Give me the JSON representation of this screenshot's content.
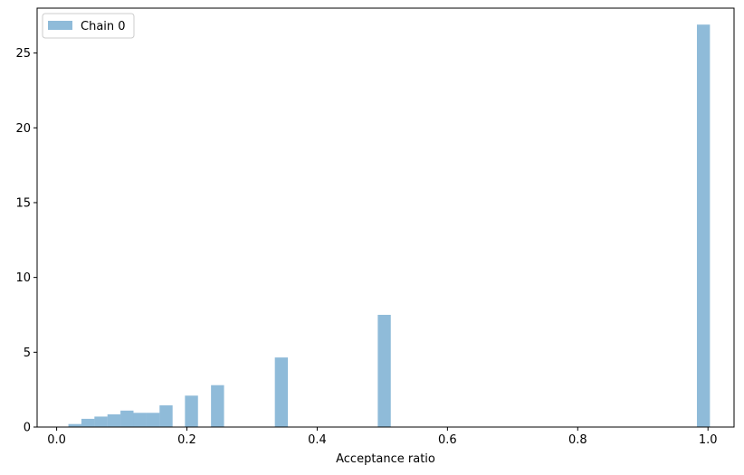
{
  "chart_data": {
    "type": "histogram",
    "xlabel": "Acceptance ratio",
    "ylabel": "",
    "title": "",
    "xlim": [
      -0.03,
      1.04
    ],
    "ylim": [
      0,
      28
    ],
    "x_ticks": [
      0.0,
      0.2,
      0.4,
      0.6,
      0.8,
      1.0
    ],
    "x_tick_labels": [
      "0.0",
      "0.2",
      "0.4",
      "0.6",
      "0.8",
      "1.0"
    ],
    "y_ticks": [
      0,
      5,
      10,
      15,
      20,
      25
    ],
    "y_tick_labels": [
      "0",
      "5",
      "10",
      "15",
      "20",
      "25"
    ],
    "grid": false,
    "legend": {
      "position": "top-left",
      "entries": [
        "Chain 0"
      ]
    },
    "series": [
      {
        "name": "Chain 0",
        "color": "#1f77b4",
        "opacity": 0.5,
        "bars": [
          {
            "x0": 0.018,
            "x1": 0.038,
            "value": 0.2
          },
          {
            "x0": 0.038,
            "x1": 0.058,
            "value": 0.55
          },
          {
            "x0": 0.058,
            "x1": 0.078,
            "value": 0.7
          },
          {
            "x0": 0.078,
            "x1": 0.098,
            "value": 0.85
          },
          {
            "x0": 0.098,
            "x1": 0.118,
            "value": 1.1
          },
          {
            "x0": 0.118,
            "x1": 0.138,
            "value": 0.95
          },
          {
            "x0": 0.138,
            "x1": 0.158,
            "value": 0.95
          },
          {
            "x0": 0.158,
            "x1": 0.178,
            "value": 1.45
          },
          {
            "x0": 0.197,
            "x1": 0.217,
            "value": 2.1
          },
          {
            "x0": 0.237,
            "x1": 0.257,
            "value": 2.8
          },
          {
            "x0": 0.335,
            "x1": 0.355,
            "value": 4.65
          },
          {
            "x0": 0.493,
            "x1": 0.513,
            "value": 7.5
          },
          {
            "x0": 0.983,
            "x1": 1.003,
            "value": 26.9
          }
        ]
      }
    ]
  }
}
